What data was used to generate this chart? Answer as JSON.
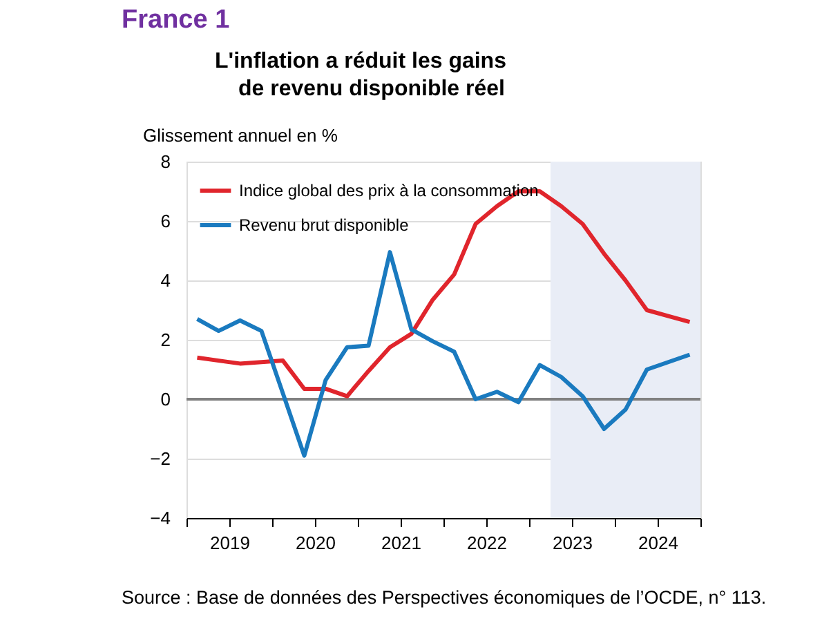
{
  "chart_data": {
    "type": "line",
    "title": "France 1",
    "subtitle": "L'inflation a réduit les gains\n de revenu disponible réel",
    "ylabel": "Glissement annuel en %",
    "x": [
      2019.125,
      2019.375,
      2019.625,
      2019.875,
      2020.125,
      2020.375,
      2020.625,
      2020.875,
      2021.125,
      2021.375,
      2021.625,
      2021.875,
      2022.125,
      2022.375,
      2022.625,
      2022.875,
      2023.125,
      2023.375,
      2023.625,
      2023.875,
      2024.125,
      2024.375,
      2024.625,
      2024.875
    ],
    "series": [
      {
        "name": "Indice global des prix à la consommation",
        "color": "#e0252c",
        "values": [
          1.4,
          1.3,
          1.2,
          1.25,
          1.3,
          0.35,
          0.35,
          0.1,
          0.95,
          1.75,
          2.2,
          3.35,
          4.2,
          5.9,
          6.5,
          7.0,
          7.0,
          6.5,
          5.9,
          4.9,
          4.0,
          3.0,
          2.8,
          2.6
        ]
      },
      {
        "name": "Revenu brut disponible",
        "color": "#1a7abf",
        "values": [
          2.7,
          2.3,
          2.65,
          2.3,
          0.2,
          -1.9,
          0.65,
          1.75,
          1.8,
          4.95,
          2.35,
          1.95,
          1.6,
          0.0,
          0.25,
          -0.1,
          1.15,
          0.75,
          0.1,
          -1.0,
          -0.35,
          1.0,
          1.25,
          1.5
        ]
      }
    ],
    "xlim": [
      2019,
      2025
    ],
    "xticks": [
      {
        "value": 2019,
        "label": null
      },
      {
        "value": 2019.5,
        "label": "2019"
      },
      {
        "value": 2020,
        "label": null
      },
      {
        "value": 2020.5,
        "label": "2020"
      },
      {
        "value": 2021,
        "label": null
      },
      {
        "value": 2021.5,
        "label": "2021"
      },
      {
        "value": 2022,
        "label": null
      },
      {
        "value": 2022.5,
        "label": "2022"
      },
      {
        "value": 2023,
        "label": null
      },
      {
        "value": 2023.5,
        "label": "2023"
      },
      {
        "value": 2024,
        "label": null
      },
      {
        "value": 2024.5,
        "label": "2024"
      },
      {
        "value": 2025,
        "label": null
      }
    ],
    "ylim": [
      -4,
      8
    ],
    "yticks": [
      -4,
      -2,
      0,
      2,
      4,
      6,
      8
    ],
    "bands": [
      {
        "axis": "x",
        "from": 2023.25,
        "to": 2025,
        "color": "#e9edf6"
      }
    ],
    "ref_lines": [
      {
        "axis": "y",
        "value": 0,
        "color": "#808080"
      }
    ],
    "grid": "y",
    "legend": "top left",
    "marker": "none",
    "line_style": "solid",
    "annotations": [
      "Source : Base de données des Perspectives économiques de l’OCDE, n° 113."
    ]
  }
}
